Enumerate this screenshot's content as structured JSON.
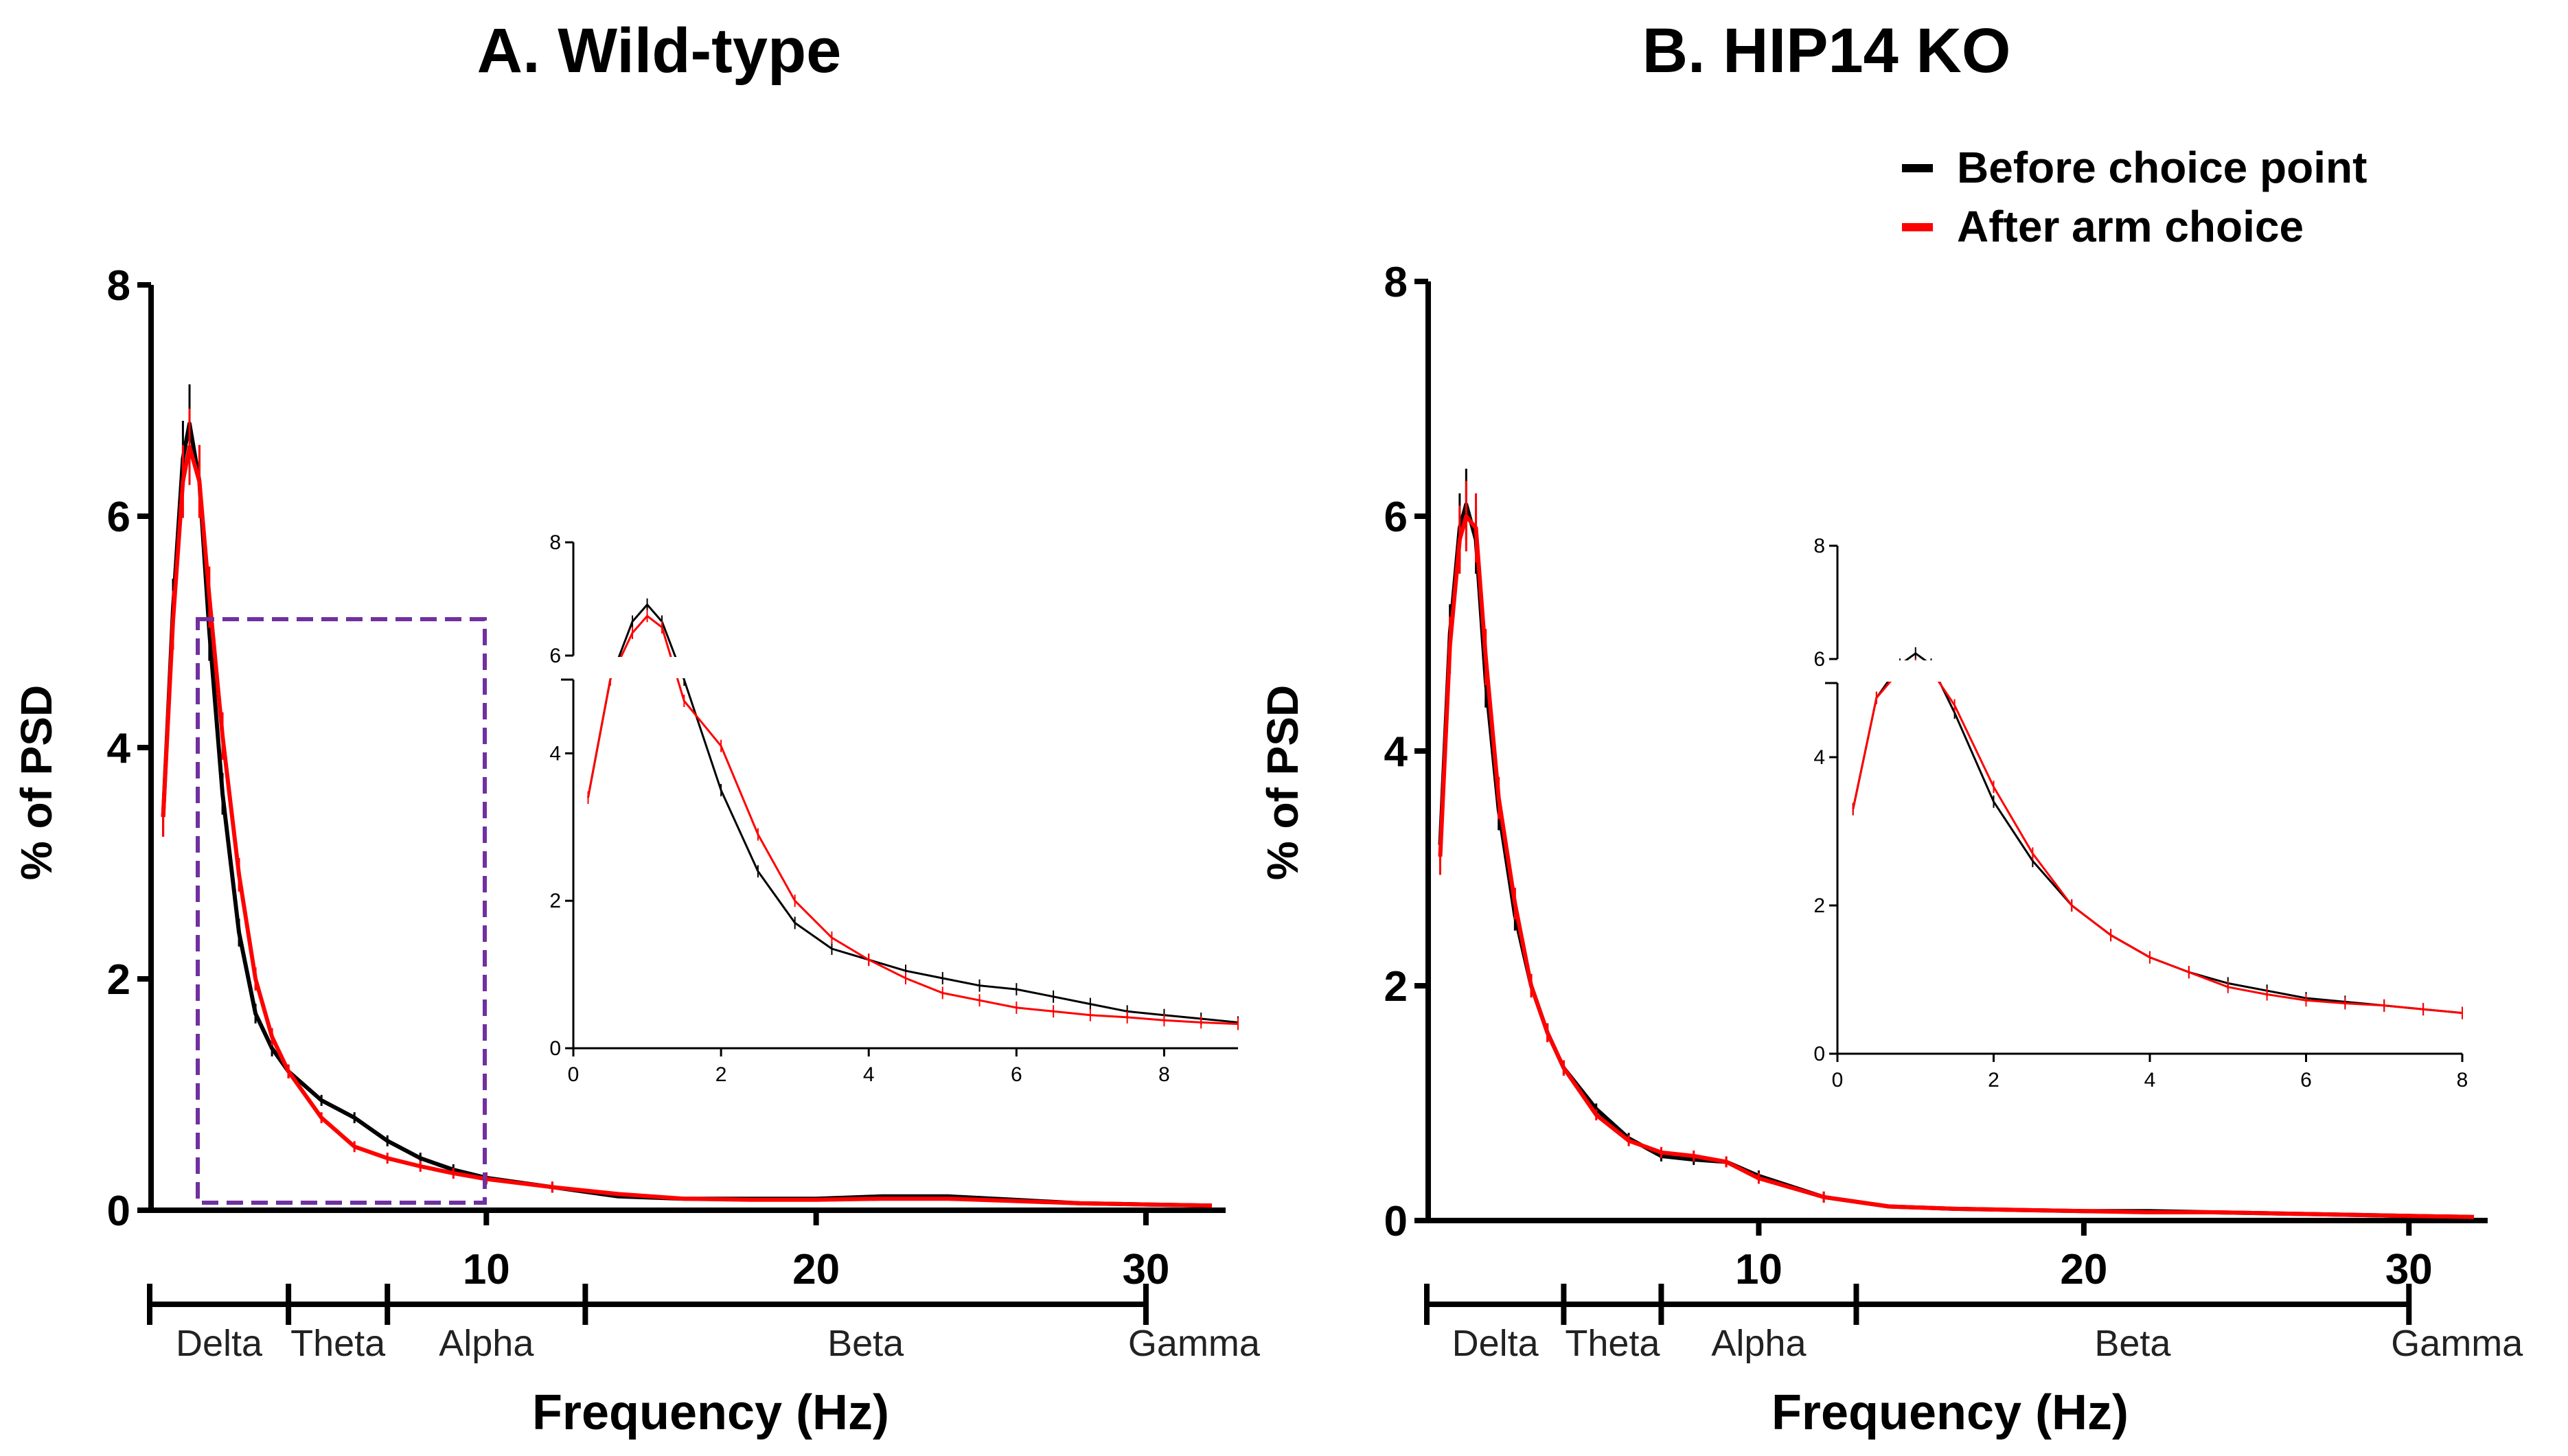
{
  "legend": {
    "series1": "Before choice point",
    "series2": "After arm choice",
    "color1": "#000000",
    "color2": "#ff0000"
  },
  "chart_data": [
    {
      "type": "line",
      "title": "A. Wild-type",
      "xlabel": "Frequency (Hz)",
      "ylabel": "% of PSD",
      "xlim": [
        0,
        32
      ],
      "ylim": [
        0,
        8
      ],
      "xticks": [
        10,
        20,
        30
      ],
      "xtick_labels": [
        "10",
        "20",
        "30"
      ],
      "yticks": [
        0,
        2,
        4,
        6,
        8
      ],
      "ytick_labels": [
        "0",
        "2",
        "4",
        "6",
        "8"
      ],
      "bands": [
        {
          "name": "Delta",
          "from": 0,
          "to": 4
        },
        {
          "name": "Theta",
          "from": 4,
          "to": 7
        },
        {
          "name": "Alpha",
          "from": 7,
          "to": 13
        },
        {
          "name": "Beta",
          "from": 13,
          "to": 30
        },
        {
          "name": "Gamma",
          "from": 30,
          "to": 32
        }
      ],
      "series": [
        {
          "name": "Before choice point",
          "color": "#000000",
          "x": [
            0.2,
            0.5,
            0.8,
            1,
            1.3,
            1.6,
            2,
            2.5,
            3,
            3.5,
            4,
            5,
            6,
            7,
            8,
            9,
            10,
            12,
            14,
            16,
            18,
            20,
            22,
            24,
            26,
            28,
            30,
            32
          ],
          "y": [
            3.4,
            5.2,
            6.5,
            6.8,
            6.3,
            5.0,
            3.6,
            2.4,
            1.7,
            1.4,
            1.2,
            0.95,
            0.8,
            0.6,
            0.45,
            0.35,
            0.28,
            0.2,
            0.12,
            0.1,
            0.1,
            0.1,
            0.12,
            0.12,
            0.09,
            0.06,
            0.05,
            0.04
          ]
        },
        {
          "name": "After arm choice",
          "color": "#ff0000",
          "x": [
            0.2,
            0.5,
            0.8,
            1,
            1.3,
            1.6,
            2,
            2.5,
            3,
            3.5,
            4,
            5,
            6,
            7,
            8,
            9,
            10,
            12,
            14,
            16,
            18,
            20,
            22,
            24,
            26,
            28,
            30,
            32
          ],
          "y": [
            3.4,
            5.1,
            6.3,
            6.6,
            6.3,
            5.3,
            4.1,
            2.9,
            2.0,
            1.5,
            1.2,
            0.8,
            0.55,
            0.45,
            0.38,
            0.32,
            0.27,
            0.2,
            0.14,
            0.1,
            0.09,
            0.09,
            0.1,
            0.1,
            0.08,
            0.06,
            0.05,
            0.04
          ]
        }
      ],
      "inset": {
        "xlim": [
          0,
          9
        ],
        "ylim": [
          0,
          8
        ],
        "xticks": [
          0,
          2,
          4,
          6,
          8
        ],
        "xtick_labels": [
          "0",
          "2",
          "4",
          "6",
          "8"
        ],
        "yticks": [
          0,
          2,
          4,
          6,
          8
        ],
        "ytick_labels": [
          "0",
          "2",
          "4",
          "6",
          "8"
        ],
        "series": [
          {
            "name": "Before choice point",
            "color": "#000000",
            "x": [
              0.2,
              0.5,
              0.8,
              1,
              1.2,
              1.5,
              2,
              2.5,
              3,
              3.5,
              4,
              4.5,
              5,
              5.5,
              6,
              6.5,
              7,
              7.5,
              8,
              8.5,
              9
            ],
            "y": [
              3.4,
              5.0,
              6.6,
              6.9,
              6.6,
              5.0,
              3.5,
              2.4,
              1.7,
              1.35,
              1.2,
              1.05,
              0.95,
              0.85,
              0.8,
              0.7,
              0.6,
              0.5,
              0.45,
              0.4,
              0.35
            ]
          },
          {
            "name": "After arm choice",
            "color": "#ff0000",
            "x": [
              0.2,
              0.5,
              0.8,
              1,
              1.2,
              1.5,
              2,
              2.5,
              3,
              3.5,
              4,
              4.5,
              5,
              5.5,
              6,
              6.5,
              7,
              7.5,
              8,
              8.5,
              9
            ],
            "y": [
              3.4,
              5.0,
              6.4,
              6.7,
              6.5,
              5.2,
              4.1,
              2.9,
              2.0,
              1.5,
              1.2,
              0.95,
              0.75,
              0.65,
              0.55,
              0.5,
              0.45,
              0.42,
              0.38,
              0.35,
              0.33
            ]
          }
        ]
      }
    },
    {
      "type": "line",
      "title": "B. HIP14 KO",
      "xlabel": "Frequency (Hz)",
      "ylabel": "% of PSD",
      "xlim": [
        0,
        32
      ],
      "ylim": [
        0,
        8
      ],
      "xticks": [
        10,
        20,
        30
      ],
      "xtick_labels": [
        "10",
        "20",
        "30"
      ],
      "yticks": [
        0,
        2,
        4,
        6,
        8
      ],
      "ytick_labels": [
        "0",
        "2",
        "4",
        "6",
        "8"
      ],
      "bands": [
        {
          "name": "Delta",
          "from": 0,
          "to": 4
        },
        {
          "name": "Theta",
          "from": 4,
          "to": 7
        },
        {
          "name": "Alpha",
          "from": 7,
          "to": 13
        },
        {
          "name": "Beta",
          "from": 13,
          "to": 30
        },
        {
          "name": "Gamma",
          "from": 30,
          "to": 32
        }
      ],
      "series": [
        {
          "name": "Before choice point",
          "color": "#000000",
          "x": [
            0.2,
            0.5,
            0.8,
            1,
            1.3,
            1.6,
            2,
            2.5,
            3,
            3.5,
            4,
            5,
            6,
            7,
            8,
            9,
            10,
            12,
            14,
            16,
            18,
            20,
            22,
            24,
            26,
            28,
            30,
            32
          ],
          "y": [
            3.2,
            5.0,
            5.9,
            6.1,
            5.8,
            4.6,
            3.5,
            2.6,
            2.0,
            1.6,
            1.3,
            0.95,
            0.7,
            0.55,
            0.52,
            0.5,
            0.38,
            0.2,
            0.12,
            0.1,
            0.09,
            0.08,
            0.08,
            0.07,
            0.06,
            0.05,
            0.04,
            0.03
          ]
        },
        {
          "name": "After arm choice",
          "color": "#ff0000",
          "x": [
            0.2,
            0.5,
            0.8,
            1,
            1.3,
            1.6,
            2,
            2.5,
            3,
            3.5,
            4,
            5,
            6,
            7,
            8,
            9,
            10,
            12,
            14,
            16,
            18,
            20,
            22,
            24,
            26,
            28,
            30,
            32
          ],
          "y": [
            3.1,
            4.9,
            5.8,
            6.0,
            5.9,
            4.8,
            3.6,
            2.7,
            2.0,
            1.6,
            1.3,
            0.9,
            0.68,
            0.58,
            0.55,
            0.5,
            0.36,
            0.2,
            0.12,
            0.1,
            0.09,
            0.08,
            0.07,
            0.07,
            0.06,
            0.05,
            0.04,
            0.03
          ]
        }
      ],
      "inset": {
        "xlim": [
          0,
          8
        ],
        "ylim": [
          0,
          8
        ],
        "xticks": [
          0,
          2,
          4,
          6,
          8
        ],
        "xtick_labels": [
          "0",
          "2",
          "4",
          "6",
          "8"
        ],
        "yticks": [
          0,
          2,
          4,
          6,
          8
        ],
        "ytick_labels": [
          "0",
          "2",
          "4",
          "6",
          "8"
        ],
        "series": [
          {
            "name": "Before choice point",
            "color": "#000000",
            "x": [
              0.2,
              0.5,
              0.8,
              1,
              1.2,
              1.5,
              2,
              2.5,
              3,
              3.5,
              4,
              4.5,
              5,
              5.5,
              6,
              6.5,
              7,
              7.5,
              8
            ],
            "y": [
              3.3,
              4.8,
              5.9,
              6.1,
              5.9,
              4.6,
              3.4,
              2.6,
              2.0,
              1.6,
              1.3,
              1.1,
              0.95,
              0.85,
              0.75,
              0.7,
              0.65,
              0.6,
              0.55
            ]
          },
          {
            "name": "After arm choice",
            "color": "#ff0000",
            "x": [
              0.2,
              0.5,
              0.8,
              1,
              1.2,
              1.5,
              2,
              2.5,
              3,
              3.5,
              4,
              4.5,
              5,
              5.5,
              6,
              6.5,
              7,
              7.5,
              8
            ],
            "y": [
              3.3,
              4.8,
              5.8,
              5.9,
              5.8,
              4.7,
              3.6,
              2.7,
              2.0,
              1.6,
              1.3,
              1.1,
              0.9,
              0.8,
              0.72,
              0.68,
              0.65,
              0.6,
              0.55
            ]
          }
        ]
      }
    }
  ]
}
